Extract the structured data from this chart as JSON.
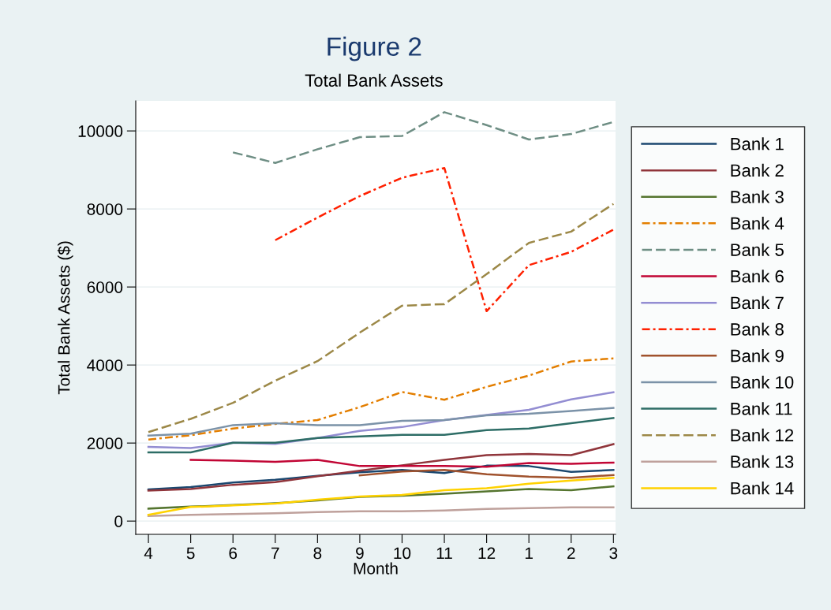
{
  "chart_data": {
    "type": "line",
    "title": "Figure 2",
    "subtitle": "Total Bank Assets",
    "xlabel": "Month",
    "ylabel": "Total Bank Assets ($)",
    "categories": [
      "4",
      "5",
      "6",
      "7",
      "8",
      "9",
      "10",
      "11",
      "12",
      "1",
      "2",
      "3"
    ],
    "ylim": [
      -340,
      10770
    ],
    "yticks": [
      0,
      2000,
      4000,
      6000,
      8000,
      10000
    ],
    "grid": "y",
    "legend": "right",
    "series": [
      {
        "name": "Bank 1",
        "color": "#1a476f",
        "line_style": "solid",
        "values": [
          810,
          870,
          990,
          1060,
          1160,
          1250,
          1310,
          1230,
          1420,
          1410,
          1260,
          1310
        ]
      },
      {
        "name": "Bank 2",
        "color": "#90353b",
        "line_style": "solid",
        "values": [
          780,
          820,
          930,
          1000,
          1150,
          1290,
          1430,
          1570,
          1690,
          1720,
          1690,
          1970
        ]
      },
      {
        "name": "Bank 3",
        "color": "#55752f",
        "line_style": "solid",
        "values": [
          320,
          370,
          410,
          460,
          530,
          620,
          650,
          700,
          760,
          820,
          790,
          890
        ]
      },
      {
        "name": "Bank 4",
        "color": "#e37e00",
        "line_style": "dashdot",
        "values": [
          2090,
          2200,
          2370,
          2490,
          2590,
          2920,
          3310,
          3110,
          3440,
          3730,
          4090,
          4170
        ]
      },
      {
        "name": "Bank 5",
        "color": "#6e8e84",
        "line_style": "dashed",
        "values": [
          null,
          null,
          9450,
          9180,
          9530,
          9840,
          9870,
          10480,
          10150,
          9780,
          9920,
          10230
        ]
      },
      {
        "name": "Bank 6",
        "color": "#c10534",
        "line_style": "solid",
        "values": [
          null,
          1570,
          1550,
          1520,
          1570,
          1410,
          1410,
          1410,
          1390,
          1490,
          1470,
          1500
        ]
      },
      {
        "name": "Bank 7",
        "color": "#938dd2",
        "line_style": "solid",
        "values": [
          1900,
          1870,
          2010,
          1980,
          2130,
          2310,
          2410,
          2590,
          2720,
          2850,
          3120,
          3300
        ]
      },
      {
        "name": "Bank 8",
        "color": "#ff2000",
        "line_style": "dashdot",
        "values": [
          null,
          null,
          null,
          7200,
          7780,
          8330,
          8800,
          9050,
          5380,
          6560,
          6900,
          7470
        ]
      },
      {
        "name": "Bank 9",
        "color": "#a0522d",
        "line_style": "solid",
        "values": [
          null,
          null,
          null,
          null,
          null,
          1170,
          1270,
          1310,
          1200,
          1140,
          1110,
          1180
        ]
      },
      {
        "name": "Bank 10",
        "color": "#7b92a8",
        "line_style": "solid",
        "values": [
          2190,
          2240,
          2460,
          2510,
          2460,
          2460,
          2570,
          2590,
          2710,
          2750,
          2820,
          2900
        ]
      },
      {
        "name": "Bank 11",
        "color": "#2d6d66",
        "line_style": "solid",
        "values": [
          1760,
          1760,
          2010,
          2010,
          2130,
          2170,
          2210,
          2210,
          2330,
          2370,
          2510,
          2640
        ]
      },
      {
        "name": "Bank 12",
        "color": "#9c8847",
        "line_style": "dashed",
        "values": [
          2280,
          2620,
          3030,
          3600,
          4100,
          4830,
          5520,
          5560,
          6330,
          7130,
          7420,
          8130
        ]
      },
      {
        "name": "Bank 13",
        "color": "#bfa19c",
        "line_style": "solid",
        "values": [
          130,
          160,
          180,
          200,
          230,
          250,
          250,
          270,
          310,
          330,
          350,
          350
        ]
      },
      {
        "name": "Bank 14",
        "color": "#ffd200",
        "line_style": "solid",
        "values": [
          160,
          360,
          400,
          450,
          550,
          630,
          670,
          790,
          840,
          960,
          1040,
          1110
        ]
      }
    ]
  }
}
